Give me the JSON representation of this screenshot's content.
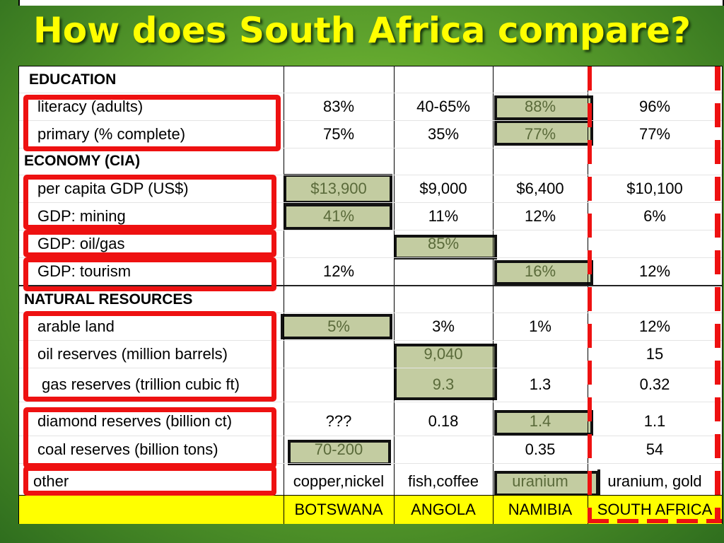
{
  "title": "How does South Africa compare?",
  "countries": [
    "BOTSWANA",
    "ANGOLA",
    "NAMIBIA",
    "SOUTH AFRICA"
  ],
  "sections": [
    {
      "label": "EDUCATION"
    },
    {
      "label": "ECONOMY (CIA)"
    },
    {
      "label": "NATURAL RESOURCES"
    }
  ],
  "rows": [
    {
      "label": "literacy (adults)",
      "values": [
        "83%",
        "40-65%",
        "88%",
        "96%"
      ]
    },
    {
      "label": "primary (% complete)",
      "values": [
        "75%",
        "35%",
        "77%",
        "77%"
      ]
    },
    {
      "label": "per capita GDP (US$)",
      "values": [
        "$13,900",
        "$9,000",
        "$6,400",
        "$10,100"
      ]
    },
    {
      "label": "GDP: mining",
      "values": [
        "41%",
        "11%",
        "12%",
        "6%"
      ]
    },
    {
      "label": "GDP: oil/gas",
      "values": [
        "",
        "85%",
        "",
        ""
      ]
    },
    {
      "label": "GDP: tourism",
      "values": [
        "12%",
        "",
        "16%",
        "12%"
      ]
    },
    {
      "label": "arable land",
      "values": [
        "5%",
        "3%",
        "1%",
        "12%"
      ]
    },
    {
      "label": "oil reserves (million barrels)",
      "values": [
        "",
        "9,040",
        "",
        "15"
      ]
    },
    {
      "label": "gas reserves (trillion cubic ft)",
      "values": [
        "",
        "9.3",
        "1.3",
        "0.32"
      ]
    },
    {
      "label": "diamond reserves (billion ct)",
      "values": [
        "???",
        "0.18",
        "1.4",
        "1.1"
      ]
    },
    {
      "label": "coal reserves (billion tons)",
      "values": [
        "70-200",
        "",
        "0.35",
        "54"
      ]
    },
    {
      "label": "other",
      "values": [
        "copper,nickel",
        "fish,coffee",
        "uranium",
        "uranium, gold"
      ]
    }
  ],
  "colors": {
    "highlight": "#c3cca1",
    "title": "#ffff00",
    "footer": "#ffff00",
    "marker": "#ee1111"
  }
}
